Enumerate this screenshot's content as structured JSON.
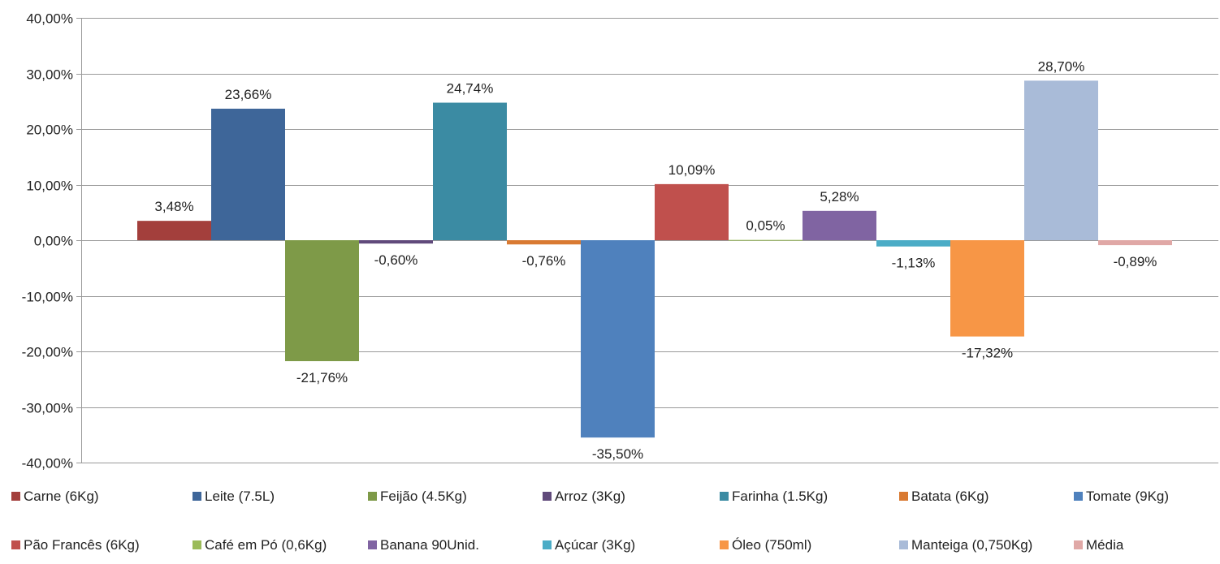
{
  "chart_data": {
    "type": "bar",
    "title": "",
    "xlabel": "",
    "ylabel": "",
    "ylim": [
      -40,
      40
    ],
    "yticks": [
      "40,00%",
      "30,00%",
      "20,00%",
      "10,00%",
      "0,00%",
      "-10,00%",
      "-20,00%",
      "-30,00%",
      "-40,00%"
    ],
    "grid": true,
    "legend_position": "bottom",
    "series": [
      {
        "name": "Carne (6Kg)",
        "value": 3.48,
        "label": "3,48%",
        "color": "#A33F3C"
      },
      {
        "name": "Leite (7.5L)",
        "value": 23.66,
        "label": "23,66%",
        "color": "#3E6699"
      },
      {
        "name": "Feijão (4.5Kg)",
        "value": -21.76,
        "label": "-21,76%",
        "color": "#7E9A48"
      },
      {
        "name": "Arroz (3Kg)",
        "value": -0.6,
        "label": "-0,60%",
        "color": "#604A7B"
      },
      {
        "name": "Farinha (1.5Kg)",
        "value": 24.74,
        "label": "24,74%",
        "color": "#3B8BA3"
      },
      {
        "name": "Batata (6Kg)",
        "value": -0.76,
        "label": "-0,76%",
        "color": "#D97A32"
      },
      {
        "name": "Tomate (9Kg)",
        "value": -35.5,
        "label": "-35,50%",
        "color": "#4F81BD"
      },
      {
        "name": "Pão Francês (6Kg)",
        "value": 10.09,
        "label": "10,09%",
        "color": "#C0504D"
      },
      {
        "name": "Café em Pó (0,6Kg)",
        "value": 0.05,
        "label": "0,05%",
        "color": "#9BBB59"
      },
      {
        "name": "Banana 90Unid.",
        "value": 5.28,
        "label": "5,28%",
        "color": "#8064A2"
      },
      {
        "name": "Açúcar (3Kg)",
        "value": -1.13,
        "label": "-1,13%",
        "color": "#4BACC6"
      },
      {
        "name": "Óleo (750ml)",
        "value": -17.32,
        "label": "-17,32%",
        "color": "#F79646"
      },
      {
        "name": "Manteiga (0,750Kg)",
        "value": 28.7,
        "label": "28,70%",
        "color": "#A9BBD8"
      },
      {
        "name": "Média",
        "value": -0.89,
        "label": "-0,89%",
        "color": "#E0A8A6"
      }
    ]
  }
}
